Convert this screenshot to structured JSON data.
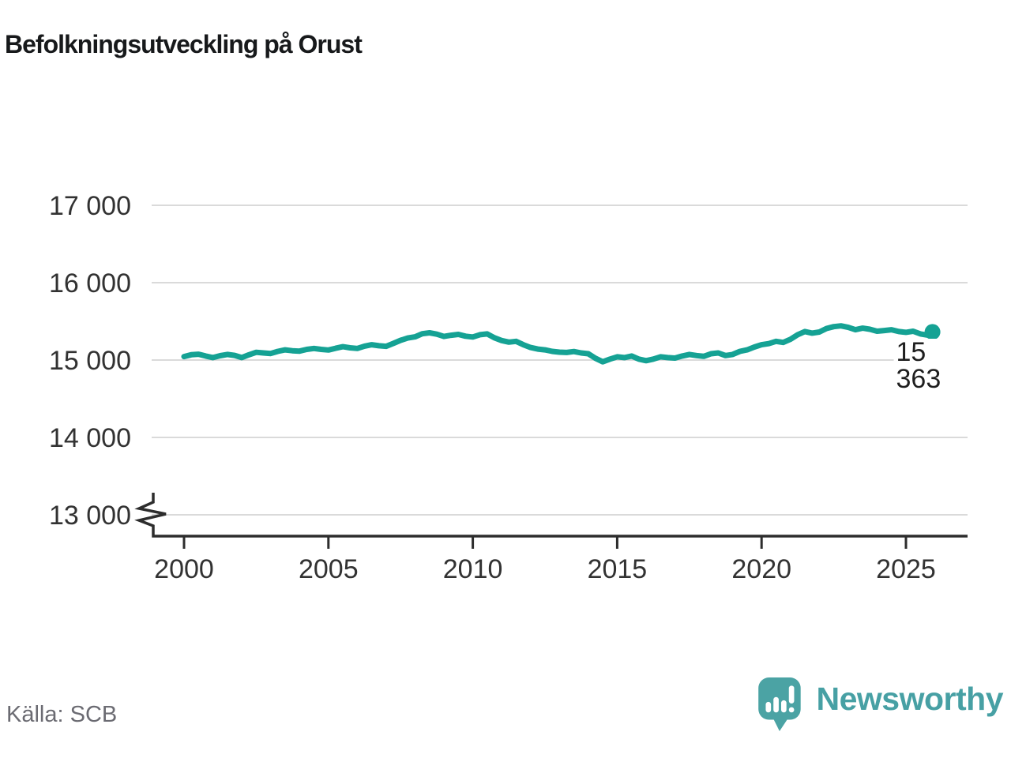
{
  "header": {
    "title": "Befolkningsutveckling på Orust"
  },
  "chart_data": {
    "type": "line",
    "title": "Befolkningsutveckling på Orust",
    "xlabel": "",
    "ylabel": "",
    "grid": true,
    "y_axis_break": true,
    "x_range": [
      1998.7,
      2027.1
    ],
    "y_gridline_range": [
      13000,
      17000
    ],
    "y_ticks": [
      {
        "label": "17 000",
        "value": 17000
      },
      {
        "label": "16 000",
        "value": 16000
      },
      {
        "label": "15 000",
        "value": 15000
      },
      {
        "label": "14 000",
        "value": 14000
      },
      {
        "label": "13 000",
        "value": 13000
      }
    ],
    "x_ticks": [
      {
        "label": "2000",
        "value": 2000
      },
      {
        "label": "2005",
        "value": 2005
      },
      {
        "label": "2010",
        "value": 2010
      },
      {
        "label": "2015",
        "value": 2015
      },
      {
        "label": "2020",
        "value": 2020
      },
      {
        "label": "2025",
        "value": 2025
      }
    ],
    "end_label": "15 363",
    "end_value": 15363,
    "line_color": "#15a294",
    "grid_color": "#dadada",
    "axis_color": "#2d2d2d",
    "tick_text_color": "#323232",
    "series": [
      {
        "points": [
          [
            2000.0,
            15045
          ],
          [
            2000.25,
            15068
          ],
          [
            2000.5,
            15075
          ],
          [
            2000.75,
            15052
          ],
          [
            2001.0,
            15032
          ],
          [
            2001.25,
            15056
          ],
          [
            2001.5,
            15072
          ],
          [
            2001.75,
            15060
          ],
          [
            2002.0,
            15032
          ],
          [
            2002.25,
            15068
          ],
          [
            2002.5,
            15100
          ],
          [
            2002.75,
            15092
          ],
          [
            2003.0,
            15085
          ],
          [
            2003.25,
            15112
          ],
          [
            2003.5,
            15132
          ],
          [
            2003.75,
            15120
          ],
          [
            2004.0,
            15115
          ],
          [
            2004.25,
            15138
          ],
          [
            2004.5,
            15150
          ],
          [
            2004.75,
            15138
          ],
          [
            2005.0,
            15130
          ],
          [
            2005.25,
            15152
          ],
          [
            2005.5,
            15172
          ],
          [
            2005.75,
            15158
          ],
          [
            2006.0,
            15150
          ],
          [
            2006.25,
            15180
          ],
          [
            2006.5,
            15198
          ],
          [
            2006.75,
            15185
          ],
          [
            2007.0,
            15178
          ],
          [
            2007.25,
            15215
          ],
          [
            2007.5,
            15255
          ],
          [
            2007.75,
            15285
          ],
          [
            2008.0,
            15300
          ],
          [
            2008.25,
            15340
          ],
          [
            2008.5,
            15352
          ],
          [
            2008.75,
            15335
          ],
          [
            2009.0,
            15305
          ],
          [
            2009.25,
            15320
          ],
          [
            2009.5,
            15332
          ],
          [
            2009.75,
            15308
          ],
          [
            2010.0,
            15298
          ],
          [
            2010.25,
            15328
          ],
          [
            2010.5,
            15338
          ],
          [
            2010.75,
            15288
          ],
          [
            2011.0,
            15252
          ],
          [
            2011.25,
            15232
          ],
          [
            2011.5,
            15242
          ],
          [
            2011.75,
            15198
          ],
          [
            2012.0,
            15162
          ],
          [
            2012.25,
            15142
          ],
          [
            2012.5,
            15132
          ],
          [
            2012.75,
            15112
          ],
          [
            2013.0,
            15102
          ],
          [
            2013.25,
            15098
          ],
          [
            2013.5,
            15110
          ],
          [
            2013.75,
            15092
          ],
          [
            2014.0,
            15082
          ],
          [
            2014.25,
            15022
          ],
          [
            2014.5,
            14978
          ],
          [
            2014.75,
            15012
          ],
          [
            2015.0,
            15042
          ],
          [
            2015.25,
            15032
          ],
          [
            2015.5,
            15052
          ],
          [
            2015.75,
            15012
          ],
          [
            2016.0,
            14992
          ],
          [
            2016.25,
            15012
          ],
          [
            2016.5,
            15042
          ],
          [
            2016.75,
            15032
          ],
          [
            2017.0,
            15026
          ],
          [
            2017.25,
            15052
          ],
          [
            2017.5,
            15072
          ],
          [
            2017.75,
            15058
          ],
          [
            2018.0,
            15048
          ],
          [
            2018.25,
            15082
          ],
          [
            2018.5,
            15092
          ],
          [
            2018.75,
            15058
          ],
          [
            2019.0,
            15072
          ],
          [
            2019.25,
            15112
          ],
          [
            2019.5,
            15132
          ],
          [
            2019.75,
            15168
          ],
          [
            2020.0,
            15198
          ],
          [
            2020.25,
            15212
          ],
          [
            2020.5,
            15242
          ],
          [
            2020.75,
            15228
          ],
          [
            2021.0,
            15268
          ],
          [
            2021.25,
            15328
          ],
          [
            2021.5,
            15368
          ],
          [
            2021.75,
            15348
          ],
          [
            2022.0,
            15362
          ],
          [
            2022.25,
            15408
          ],
          [
            2022.5,
            15432
          ],
          [
            2022.75,
            15442
          ],
          [
            2023.0,
            15422
          ],
          [
            2023.25,
            15392
          ],
          [
            2023.5,
            15412
          ],
          [
            2023.75,
            15398
          ],
          [
            2024.0,
            15372
          ],
          [
            2024.25,
            15382
          ],
          [
            2024.5,
            15392
          ],
          [
            2024.75,
            15368
          ],
          [
            2025.0,
            15358
          ],
          [
            2025.25,
            15372
          ],
          [
            2025.5,
            15338
          ],
          [
            2025.75,
            15322
          ],
          [
            2025.92,
            15363
          ]
        ]
      }
    ]
  },
  "footer": {
    "source": "Källa: SCB",
    "brand_name": "Newsworthy",
    "brand_color": "#47a0a4",
    "brand_icon_color": "#4ba3a4",
    "brand_icon_bar_color": "#ffffff"
  }
}
